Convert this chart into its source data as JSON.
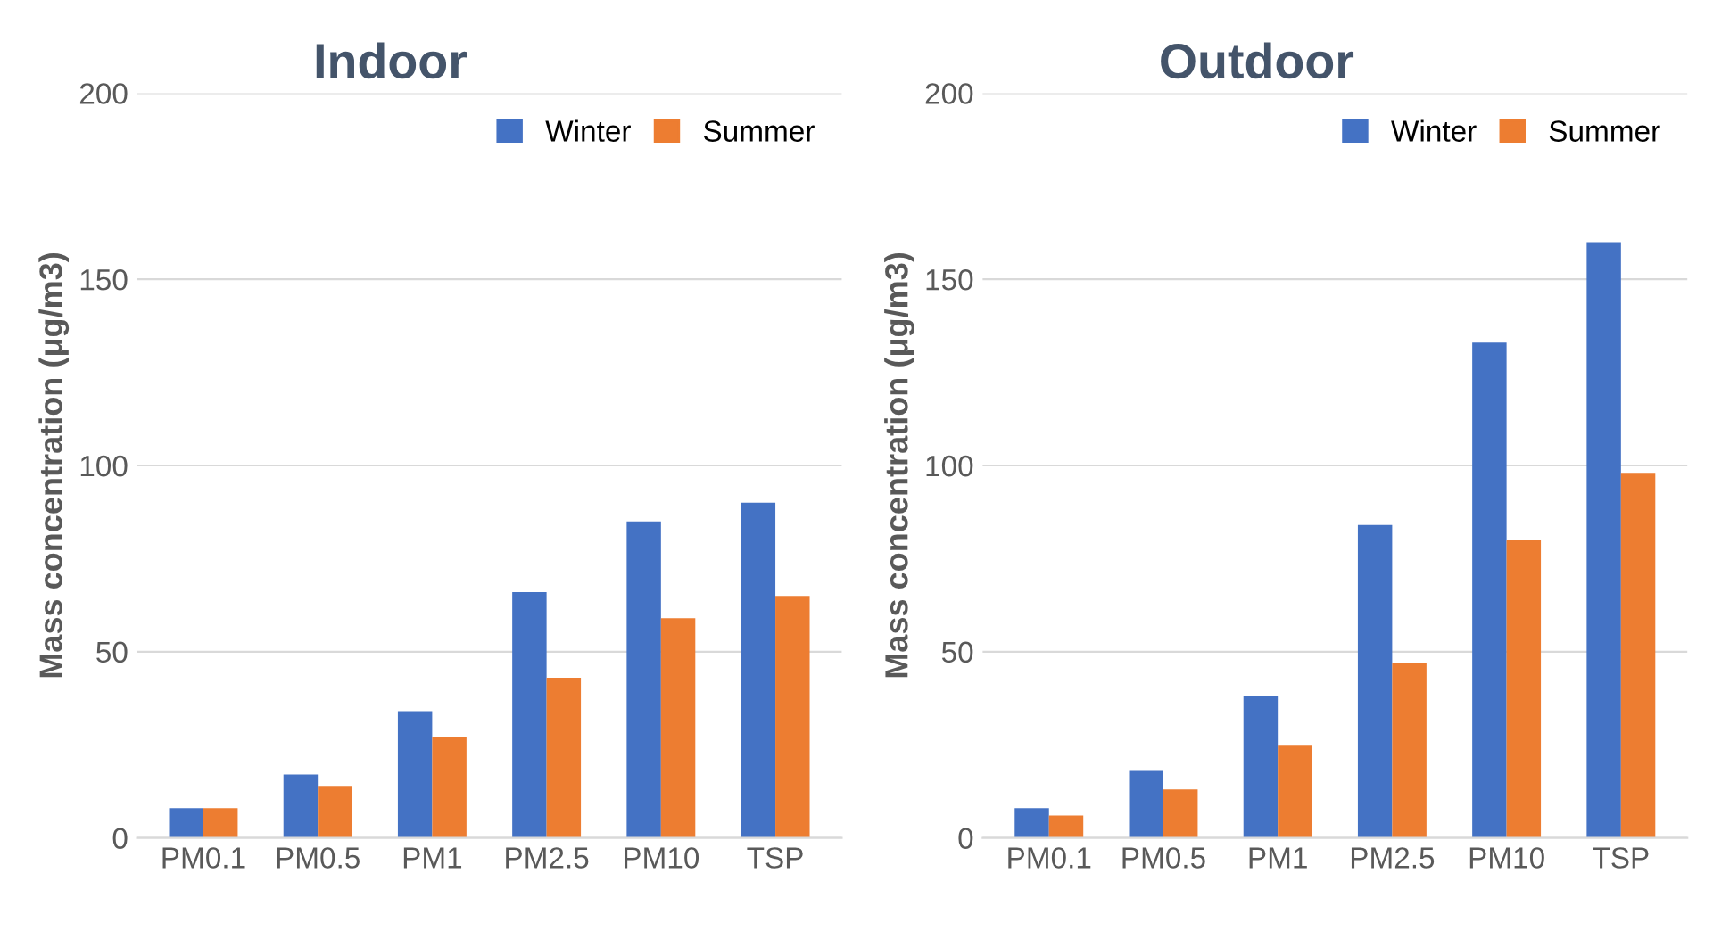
{
  "chart_data": [
    {
      "type": "bar",
      "title": "Indoor",
      "ylabel": "Mass concentration (μg/m3)",
      "categories": [
        "PM0.1",
        "PM0.5",
        "PM1",
        "PM2.5",
        "PM10",
        "TSP"
      ],
      "ylim": [
        0,
        200
      ],
      "yticks": [
        0,
        50,
        100,
        150,
        200
      ],
      "grid": "y",
      "legend": "top right",
      "series": [
        {
          "name": "Winter",
          "color": "#4472c4",
          "values": [
            8,
            17,
            34,
            66,
            85,
            90
          ]
        },
        {
          "name": "Summer",
          "color": "#ed7d31",
          "values": [
            8,
            14,
            27,
            43,
            59,
            65
          ]
        }
      ]
    },
    {
      "type": "bar",
      "title": "Outdoor",
      "ylabel": "Mass concentration (μg/m3)",
      "categories": [
        "PM0.1",
        "PM0.5",
        "PM1",
        "PM2.5",
        "PM10",
        "TSP"
      ],
      "ylim": [
        0,
        200
      ],
      "yticks": [
        0,
        50,
        100,
        150,
        200
      ],
      "grid": "y",
      "legend": "top right",
      "series": [
        {
          "name": "Winter",
          "color": "#4472c4",
          "values": [
            8,
            18,
            38,
            84,
            133,
            160
          ]
        },
        {
          "name": "Summer",
          "color": "#ed7d31",
          "values": [
            6,
            13,
            25,
            47,
            80,
            98
          ]
        }
      ]
    }
  ]
}
